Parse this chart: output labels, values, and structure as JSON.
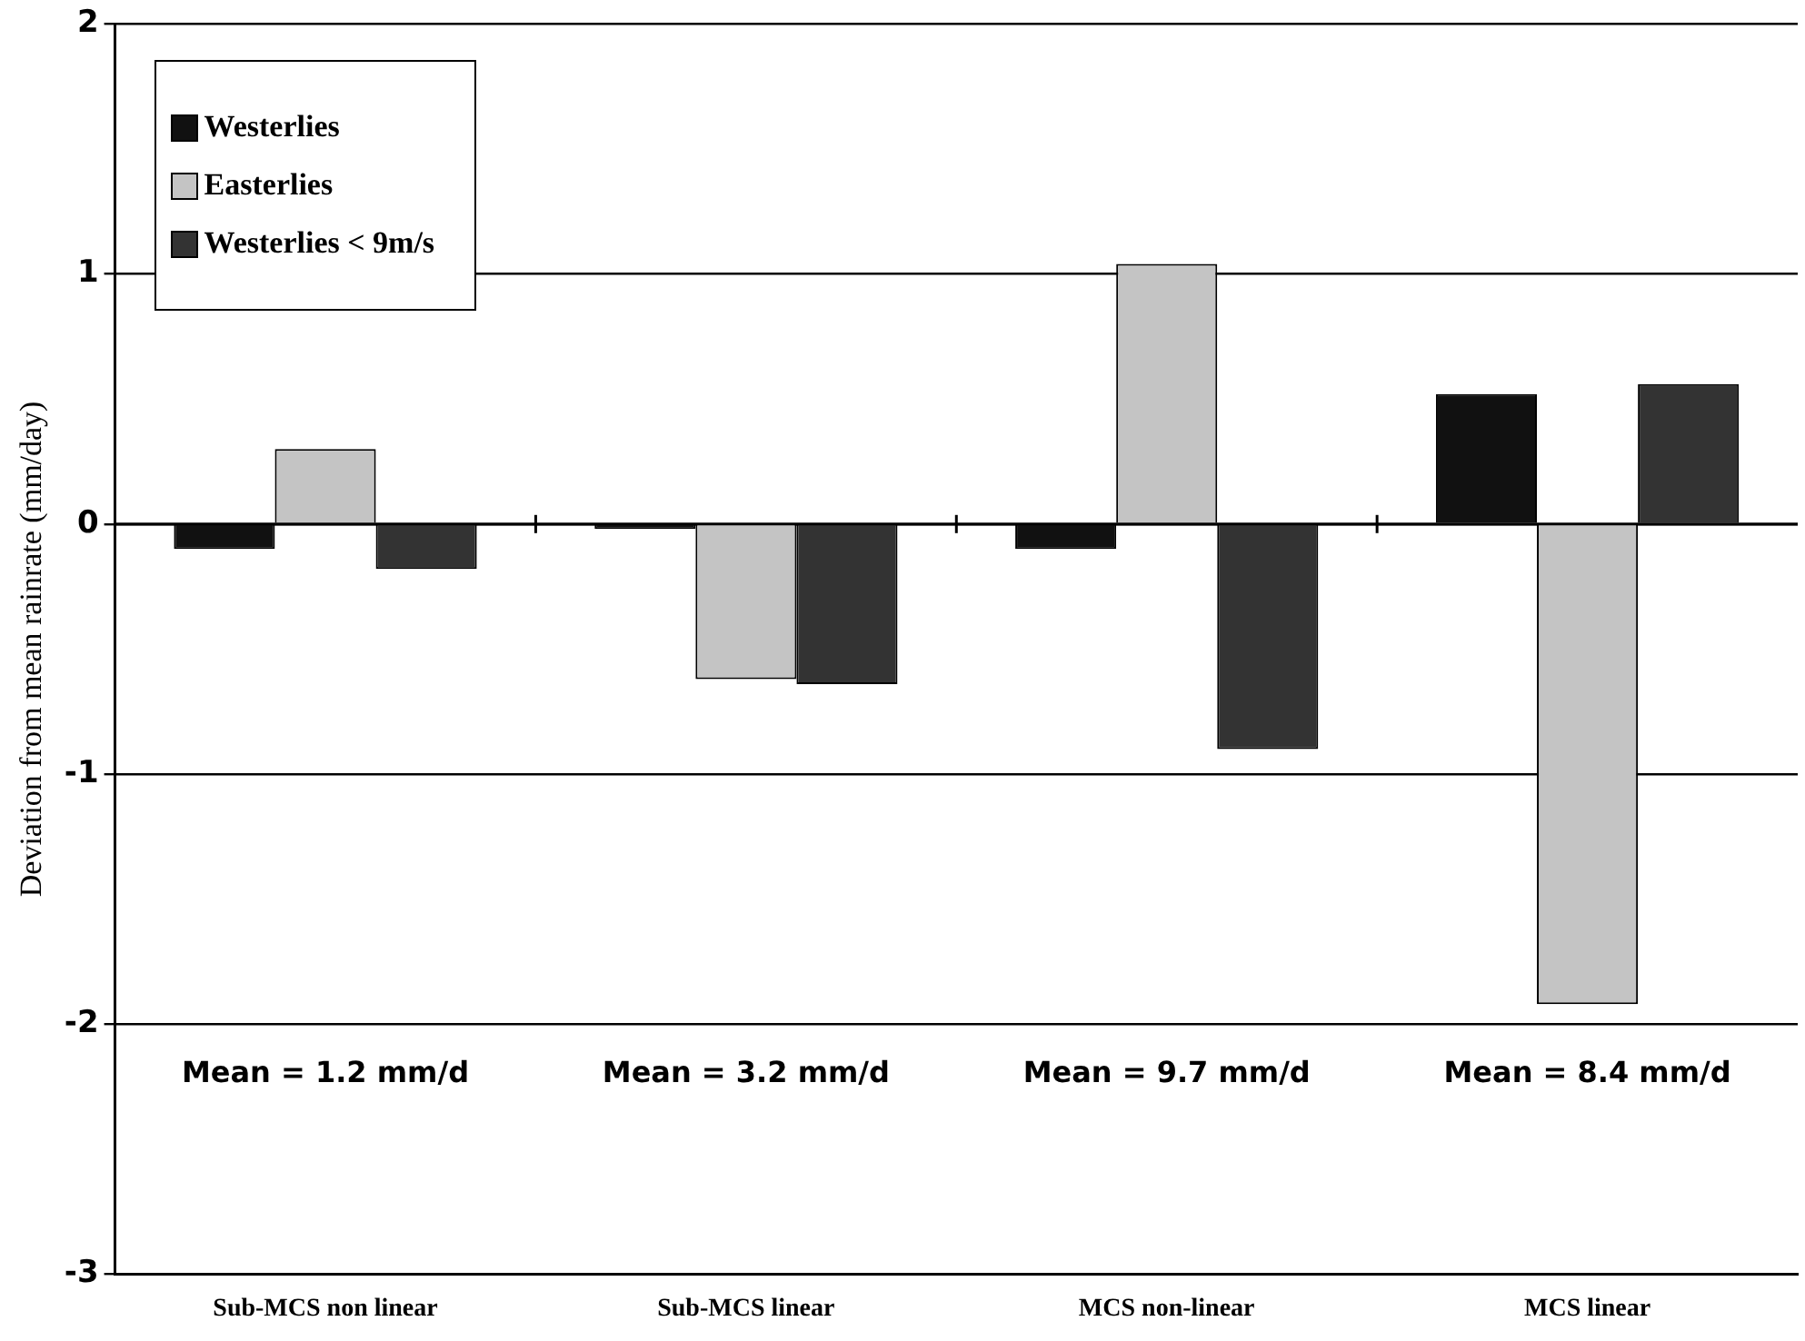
{
  "chart_data": {
    "type": "bar",
    "ylabel": "Deviation from mean rainrate (mm/day)",
    "categories": [
      "Sub-MCS non linear",
      "Sub-MCS linear",
      "MCS non-linear",
      "MCS linear"
    ],
    "series": [
      {
        "name": "Westerlies",
        "color": "#111111",
        "values": [
          -0.1,
          -0.02,
          -0.1,
          0.52
        ]
      },
      {
        "name": "Easterlies",
        "color": "#c4c4c4",
        "values": [
          0.3,
          -0.62,
          1.04,
          -1.92
        ]
      },
      {
        "name": "Westerlies < 9m/s",
        "color": "#333333",
        "values": [
          -0.18,
          -0.64,
          -0.9,
          0.56
        ]
      }
    ],
    "ylim": [
      -3,
      2
    ],
    "yticks": [
      -3,
      -2,
      -1,
      0,
      1,
      2
    ],
    "grid": "y",
    "legend": "top left",
    "annotations": [
      "Mean = 1.2 mm/d",
      "Mean = 3.2 mm/d",
      "Mean = 9.7 mm/d",
      "Mean = 8.4 mm/d"
    ]
  }
}
